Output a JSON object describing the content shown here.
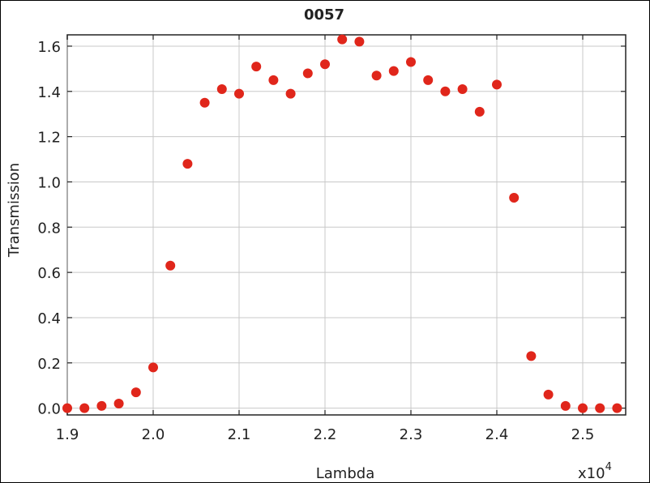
{
  "chart_data": {
    "type": "scatter",
    "title": "0057",
    "xlabel": "Lambda",
    "ylabel": "Transmission",
    "x_multiplier_label": "x10",
    "x_multiplier_exponent": "4",
    "xlim": [
      1.9,
      2.55
    ],
    "ylim": [
      -0.03,
      1.65
    ],
    "x_ticks": [
      "1.9",
      "2.0",
      "2.1",
      "2.2",
      "2.3",
      "2.4",
      "2.5"
    ],
    "y_ticks": [
      "0.0",
      "0.2",
      "0.4",
      "0.6",
      "0.8",
      "1.0",
      "1.2",
      "1.4",
      "1.6"
    ],
    "grid": true,
    "marker_color": "#e0261b",
    "series": [
      {
        "points": [
          {
            "x": 1.9,
            "y": 0.0
          },
          {
            "x": 1.92,
            "y": 0.0
          },
          {
            "x": 1.94,
            "y": 0.01
          },
          {
            "x": 1.96,
            "y": 0.02
          },
          {
            "x": 1.98,
            "y": 0.07
          },
          {
            "x": 2.0,
            "y": 0.18
          },
          {
            "x": 2.02,
            "y": 0.63
          },
          {
            "x": 2.04,
            "y": 1.08
          },
          {
            "x": 2.06,
            "y": 1.35
          },
          {
            "x": 2.08,
            "y": 1.41
          },
          {
            "x": 2.1,
            "y": 1.39
          },
          {
            "x": 2.12,
            "y": 1.51
          },
          {
            "x": 2.14,
            "y": 1.45
          },
          {
            "x": 2.16,
            "y": 1.39
          },
          {
            "x": 2.18,
            "y": 1.48
          },
          {
            "x": 2.2,
            "y": 1.52
          },
          {
            "x": 2.22,
            "y": 1.63
          },
          {
            "x": 2.24,
            "y": 1.62
          },
          {
            "x": 2.26,
            "y": 1.47
          },
          {
            "x": 2.28,
            "y": 1.49
          },
          {
            "x": 2.3,
            "y": 1.53
          },
          {
            "x": 2.32,
            "y": 1.45
          },
          {
            "x": 2.34,
            "y": 1.4
          },
          {
            "x": 2.36,
            "y": 1.41
          },
          {
            "x": 2.38,
            "y": 1.31
          },
          {
            "x": 2.4,
            "y": 1.43
          },
          {
            "x": 2.42,
            "y": 0.93
          },
          {
            "x": 2.44,
            "y": 0.23
          },
          {
            "x": 2.46,
            "y": 0.06
          },
          {
            "x": 2.48,
            "y": 0.01
          },
          {
            "x": 2.5,
            "y": 0.0
          },
          {
            "x": 2.52,
            "y": 0.0
          },
          {
            "x": 2.54,
            "y": 0.0
          }
        ]
      }
    ]
  }
}
